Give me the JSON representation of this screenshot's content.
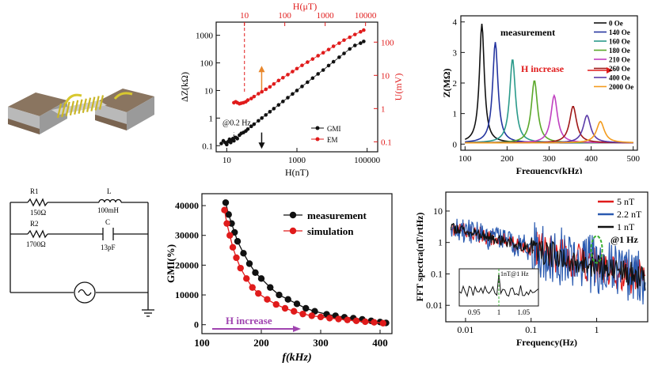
{
  "figure": {
    "panels": {
      "device": {
        "name": "device-illustration"
      },
      "circuit": {
        "R1": {
          "name": "R1",
          "value": "150Ω"
        },
        "L": {
          "name": "L",
          "value": "100mH"
        },
        "R2": {
          "name": "R2",
          "value": "1700Ω"
        },
        "C": {
          "name": "C",
          "value": "13pF"
        }
      }
    }
  },
  "chart_data": [
    {
      "id": "gmi-em",
      "type": "scatter",
      "xlabel": "H(nT)",
      "ylabel": "ΔZ(kΩ)",
      "y2label": "U(mV)",
      "x2label": "H(μT)",
      "xscale": "log",
      "yscale": "log",
      "xlim": [
        5,
        200000
      ],
      "ylim": [
        0.06,
        3000
      ],
      "x_ticks": [
        "10",
        "1000",
        "100000"
      ],
      "y_ticks": [
        "0.1",
        "1",
        "10",
        "100",
        "1000"
      ],
      "x2_ticks": [
        "10",
        "100",
        "1000",
        "10000"
      ],
      "y2_ticks": [
        "0.1",
        "1",
        "10",
        "100"
      ],
      "annotation": "@0.2 Hz",
      "series": [
        {
          "name": "GMI",
          "color": "#111111",
          "axis": "left",
          "x": [
            7,
            8,
            9,
            10,
            11,
            12,
            13,
            14,
            15,
            16,
            18,
            20,
            23,
            26,
            30,
            35,
            40,
            50,
            60,
            80,
            100,
            130,
            170,
            220,
            300,
            400,
            550,
            750,
            1000,
            1400,
            2000,
            2800,
            4000,
            5600,
            8000,
            11000,
            16000,
            22000,
            32000,
            45000,
            65000,
            80000
          ],
          "y": [
            0.12,
            0.15,
            0.13,
            0.11,
            0.14,
            0.17,
            0.13,
            0.16,
            0.18,
            0.15,
            0.2,
            0.18,
            0.24,
            0.28,
            0.3,
            0.34,
            0.4,
            0.5,
            0.6,
            0.8,
            1.0,
            1.3,
            1.7,
            2.2,
            3.0,
            4.0,
            5.5,
            7.5,
            10,
            14,
            20,
            28,
            40,
            55,
            80,
            110,
            160,
            220,
            320,
            430,
            520,
            600
          ]
        },
        {
          "name": "EM",
          "color": "#e01b1b",
          "axis": "right",
          "x": [
            16,
            18,
            20,
            23,
            26,
            30,
            35,
            40,
            50,
            60,
            80,
            100,
            130,
            170,
            220,
            300,
            400,
            550,
            750,
            1000,
            1400,
            2000,
            2800,
            4000,
            5600,
            8000,
            11000,
            16000,
            22000,
            32000,
            45000,
            65000,
            80000
          ],
          "y": [
            1.5,
            1.6,
            1.5,
            1.4,
            1.45,
            1.5,
            1.6,
            1.8,
            2.0,
            2.3,
            2.8,
            3.2,
            3.8,
            4.5,
            5.5,
            7,
            8.5,
            10.5,
            13,
            16,
            20,
            25,
            31,
            39,
            48,
            60,
            75,
            93,
            115,
            140,
            170,
            205,
            230
          ]
        }
      ]
    },
    {
      "id": "impedance-spectra",
      "type": "line",
      "title": "measurement",
      "xlabel": "Frequency(kHz)",
      "ylabel": "Z(MΩ)",
      "xlim": [
        90,
        510
      ],
      "ylim": [
        -0.2,
        4.2
      ],
      "x_ticks": [
        "100",
        "200",
        "300",
        "400",
        "500"
      ],
      "y_ticks": [
        "0",
        "1",
        "2",
        "3",
        "4"
      ],
      "annotation": "H increase",
      "series": [
        {
          "name": "0 Oe",
          "color": "#111111",
          "peak_x": 140,
          "peak_y": 3.9
        },
        {
          "name": "140 Oe",
          "color": "#2535a0",
          "peak_x": 172,
          "peak_y": 3.3
        },
        {
          "name": "160 Oe",
          "color": "#2a9a8a",
          "peak_x": 213,
          "peak_y": 2.75
        },
        {
          "name": "180 Oe",
          "color": "#5aa82a",
          "peak_x": 265,
          "peak_y": 2.05
        },
        {
          "name": "210 Oe",
          "color": "#c040c0",
          "peak_x": 312,
          "peak_y": 1.55
        },
        {
          "name": "260 Oe",
          "color": "#a01818",
          "peak_x": 357,
          "peak_y": 1.2
        },
        {
          "name": "400 Oe",
          "color": "#5a3aa8",
          "peak_x": 390,
          "peak_y": 0.9
        },
        {
          "name": "2000 Oe",
          "color": "#f39c1f",
          "peak_x": 422,
          "peak_y": 0.7
        }
      ]
    },
    {
      "id": "gmi-frequency",
      "type": "line",
      "xlabel": "f(kHz)",
      "ylabel": "GMI(%)",
      "xlim": [
        100,
        420
      ],
      "ylim": [
        -3000,
        44000
      ],
      "x_ticks": [
        "100",
        "200",
        "300",
        "400"
      ],
      "y_ticks": [
        "0",
        "10000",
        "20000",
        "30000",
        "40000"
      ],
      "annotation": "H increase",
      "series": [
        {
          "name": "measurement",
          "color": "#111111",
          "x": [
            140,
            145,
            150,
            155,
            160,
            170,
            180,
            190,
            200,
            215,
            230,
            245,
            260,
            275,
            290,
            310,
            325,
            340,
            355,
            370,
            385,
            400,
            410
          ],
          "y": [
            41000,
            37000,
            34000,
            31000,
            28000,
            24000,
            20500,
            17500,
            15500,
            12500,
            10000,
            8500,
            7000,
            5500,
            4500,
            3500,
            3000,
            2500,
            2200,
            1800,
            1300,
            900,
            600
          ]
        },
        {
          "name": "simulation",
          "color": "#e01b1b",
          "x": [
            138,
            142,
            147,
            152,
            158,
            165,
            175,
            185,
            195,
            210,
            225,
            240,
            255,
            270,
            285,
            300,
            315,
            330,
            345,
            360,
            375,
            390,
            405
          ],
          "y": [
            38500,
            34000,
            30000,
            26000,
            22500,
            19000,
            15500,
            12500,
            10500,
            8500,
            6800,
            5500,
            4500,
            3600,
            3000,
            2600,
            2200,
            1900,
            1600,
            1300,
            1000,
            800,
            500
          ]
        }
      ]
    },
    {
      "id": "fft-spectra",
      "type": "line",
      "xlabel": "Frequency(Hz)",
      "ylabel": "FFT spectra(nT/rtHz)",
      "xscale": "log",
      "yscale": "log",
      "xlim": [
        0.005,
        6
      ],
      "ylim": [
        0.003,
        40
      ],
      "x_ticks": [
        "0.01",
        "0.1",
        "1"
      ],
      "y_ticks": [
        "0.01",
        "0.1",
        "1",
        "10"
      ],
      "annotation": "@1 Hz",
      "series": [
        {
          "name": "5 nT",
          "color": "#e01b1b"
        },
        {
          "name": "2.2 nT",
          "color": "#2a5ab0"
        },
        {
          "name": "1 nT",
          "color": "#111111"
        }
      ],
      "inset": {
        "label": "1nT@1 Hz",
        "x_ticks": [
          "0.95",
          "1",
          "1.05"
        ],
        "xlim": [
          0.92,
          1.08
        ]
      }
    }
  ]
}
